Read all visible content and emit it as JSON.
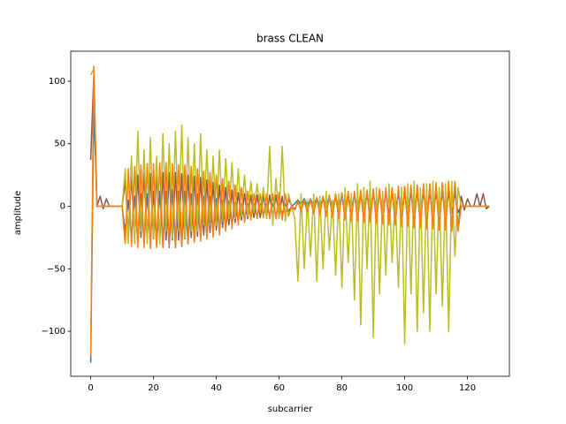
{
  "chart_data": {
    "type": "line",
    "title": "brass CLEAN",
    "x_label": "subcarrier",
    "y_label": "amplitude",
    "x": [
      0,
      1,
      2,
      3,
      4,
      5,
      6,
      7,
      8,
      9,
      10,
      11,
      12,
      13,
      14,
      15,
      16,
      17,
      18,
      19,
      20,
      21,
      22,
      23,
      24,
      25,
      26,
      27,
      28,
      29,
      30,
      31,
      32,
      33,
      34,
      35,
      36,
      37,
      38,
      39,
      40,
      41,
      42,
      43,
      44,
      45,
      46,
      47,
      48,
      49,
      50,
      51,
      52,
      53,
      54,
      55,
      56,
      57,
      58,
      59,
      60,
      61,
      62,
      63,
      64,
      65,
      66,
      67,
      68,
      69,
      70,
      71,
      72,
      73,
      74,
      75,
      76,
      77,
      78,
      79,
      80,
      81,
      82,
      83,
      84,
      85,
      86,
      87,
      88,
      89,
      90,
      91,
      92,
      93,
      94,
      95,
      96,
      97,
      98,
      99,
      100,
      101,
      102,
      103,
      104,
      105,
      106,
      107,
      108,
      109,
      110,
      111,
      112,
      113,
      114,
      115,
      116,
      117,
      118,
      119,
      120,
      121,
      122,
      123,
      124,
      125,
      126,
      127
    ],
    "series": [
      {
        "color": "#1f77b4",
        "values": [
          -125,
          80,
          0,
          0,
          0,
          0,
          0,
          0,
          0,
          0,
          0,
          -20,
          5,
          -25,
          8,
          -28,
          10,
          -30,
          10,
          -30,
          12,
          -32,
          12,
          -32,
          12,
          -33,
          13,
          -33,
          12,
          -32,
          12,
          -30,
          10,
          -28,
          10,
          -26,
          8,
          -24,
          8,
          -22,
          6,
          -20,
          5,
          -18,
          4,
          -15,
          3,
          -12,
          2,
          -10,
          2,
          -8,
          2,
          -8,
          2,
          -7,
          2,
          -7,
          2,
          -7,
          2,
          -6,
          2,
          -4,
          0,
          2,
          5,
          1,
          6,
          0,
          6,
          0,
          7,
          -1,
          7,
          -1,
          8,
          -2,
          8,
          -2,
          9,
          -3,
          9,
          -3,
          9,
          -3,
          10,
          -4,
          10,
          -4,
          10,
          -4,
          10,
          -4,
          10,
          -5,
          10,
          -5,
          10,
          -5,
          10,
          -5,
          10,
          -5,
          10,
          -5,
          10,
          -5,
          10,
          -5,
          10,
          -5,
          10,
          -5,
          10,
          -5,
          10,
          -5,
          0,
          0,
          0,
          0,
          0,
          0,
          0,
          0,
          0,
          0
        ]
      },
      {
        "color": "#8c564b",
        "values": [
          37,
          105,
          0,
          8,
          -2,
          6,
          0,
          0,
          0,
          0,
          0,
          20,
          -22,
          24,
          -24,
          25,
          -25,
          26,
          -26,
          26,
          -26,
          27,
          -27,
          27,
          -27,
          27,
          -27,
          27,
          -27,
          26,
          -26,
          25,
          -25,
          24,
          -24,
          23,
          -23,
          21,
          -21,
          19,
          -19,
          17,
          -17,
          15,
          -15,
          13,
          -13,
          11,
          -11,
          10,
          -10,
          9,
          -9,
          9,
          -9,
          9,
          -9,
          9,
          -9,
          9,
          -9,
          8,
          -8,
          6,
          0,
          -2,
          3,
          -3,
          4,
          -4,
          5,
          -5,
          6,
          -6,
          7,
          -7,
          8,
          -8,
          9,
          -9,
          10,
          -10,
          10,
          -10,
          11,
          -11,
          11,
          -11,
          12,
          -12,
          12,
          -12,
          13,
          -13,
          13,
          -13,
          14,
          -14,
          14,
          -14,
          15,
          -15,
          15,
          -15,
          16,
          -16,
          16,
          -16,
          17,
          -17,
          17,
          -17,
          18,
          -18,
          18,
          -18,
          19,
          -19,
          8,
          -3,
          6,
          0,
          0,
          10,
          0,
          10,
          -2,
          0
        ]
      },
      {
        "color": "#bcbd22",
        "values": [
          105,
          110,
          0,
          0,
          0,
          0,
          0,
          0,
          0,
          0,
          0,
          30,
          -30,
          40,
          -30,
          60,
          -20,
          45,
          -30,
          55,
          -25,
          40,
          -30,
          58,
          -20,
          50,
          -25,
          60,
          -20,
          65,
          -25,
          55,
          -20,
          50,
          -20,
          58,
          -15,
          45,
          -15,
          40,
          -15,
          45,
          -12,
          38,
          -10,
          35,
          -10,
          30,
          -8,
          25,
          -8,
          20,
          -5,
          18,
          -5,
          15,
          -10,
          48,
          -15,
          22,
          -10,
          48,
          -12,
          10,
          0,
          -10,
          -60,
          10,
          -50,
          5,
          -40,
          10,
          -60,
          8,
          -50,
          12,
          -35,
          5,
          -55,
          10,
          -65,
          15,
          -45,
          10,
          -75,
          18,
          -95,
          15,
          -50,
          20,
          -105,
          15,
          -70,
          12,
          -55,
          18,
          -45,
          10,
          -65,
          15,
          -110,
          18,
          -70,
          20,
          -100,
          15,
          -85,
          18,
          -100,
          20,
          -70,
          15,
          -80,
          18,
          -100,
          20,
          -40,
          15,
          0,
          0,
          0,
          0,
          0,
          0,
          0,
          0,
          0,
          0
        ]
      },
      {
        "color": "#ff7f0e",
        "values": [
          -120,
          112,
          0,
          0,
          0,
          0,
          0,
          0,
          0,
          0,
          0,
          -30,
          30,
          -32,
          32,
          -33,
          33,
          -33,
          34,
          -34,
          34,
          -33,
          35,
          -33,
          35,
          -32,
          34,
          -32,
          33,
          -31,
          33,
          -30,
          32,
          -29,
          30,
          -28,
          28,
          -26,
          27,
          -25,
          25,
          -23,
          22,
          -20,
          20,
          -18,
          17,
          -15,
          15,
          -13,
          12,
          -11,
          10,
          -10,
          10,
          -9,
          10,
          -10,
          10,
          -10,
          11,
          -11,
          10,
          -8,
          0,
          -3,
          4,
          -4,
          5,
          -5,
          6,
          -6,
          7,
          -7,
          8,
          -8,
          9,
          -9,
          10,
          -10,
          11,
          -11,
          12,
          -12,
          12,
          -12,
          13,
          -13,
          13,
          -13,
          14,
          -14,
          14,
          -14,
          15,
          -15,
          15,
          -15,
          16,
          -16,
          16,
          -16,
          17,
          -17,
          17,
          -17,
          18,
          -18,
          18,
          -18,
          19,
          -19,
          19,
          -19,
          20,
          -20,
          20,
          -20,
          0,
          0,
          0,
          0,
          0,
          0,
          0,
          0,
          0,
          0
        ]
      }
    ],
    "xlim": [
      -6.35,
      133.35
    ],
    "ylim": [
      -136,
      124
    ],
    "xticks": [
      0,
      20,
      40,
      60,
      80,
      100,
      120
    ],
    "yticks": [
      -100,
      -50,
      0,
      50,
      100
    ]
  }
}
